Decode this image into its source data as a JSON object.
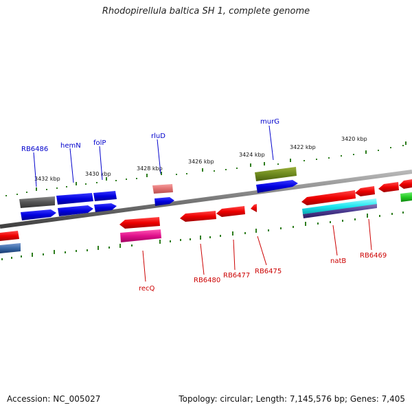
{
  "title": "Rhodopirellula baltica SH 1, complete genome",
  "footer": {
    "accession": "Accession: NC_005027",
    "summary": "Topology: circular; Length: 7,145,576 bp; Genes: 7,405"
  },
  "scale_ticks": [
    "3432 kbp",
    "3430 kbp",
    "3428 kbp",
    "3426 kbp",
    "3424 kbp",
    "3422 kbp",
    "3420 kbp"
  ],
  "forward_gene_labels": [
    "RB6486",
    "hemN",
    "folP",
    "rluD",
    "murG"
  ],
  "reverse_gene_labels": [
    "recQ",
    "RB6480",
    "RB6477",
    "RB6475",
    "natB",
    "RB6469"
  ],
  "colors": {
    "forward_label": "#0000cc",
    "reverse_label": "#cc0000",
    "backbone": "#808080",
    "tick": "#2e7d1e",
    "cds_forward": "#0000ee",
    "cds_reverse": "#ee0000"
  }
}
